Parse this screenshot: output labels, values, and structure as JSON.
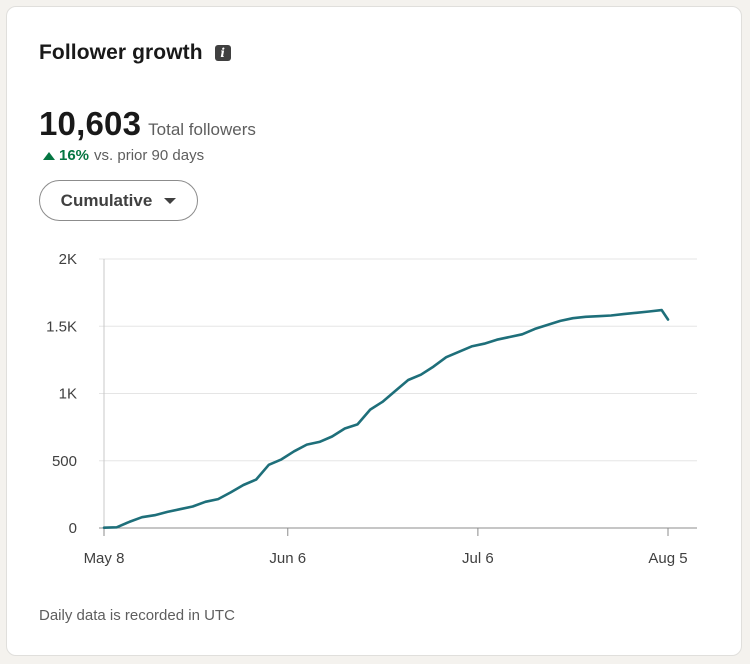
{
  "card": {
    "title": "Follower growth",
    "info_icon": "info-icon",
    "total_value": "10,603",
    "total_label": "Total followers",
    "change_pct": "16%",
    "change_label": "vs. prior 90 days",
    "dropdown_label": "Cumulative",
    "footnote": "Daily data is recorded in UTC"
  },
  "colors": {
    "line": "#1e6f7a",
    "positive": "#057642",
    "grid": "#e5e5e5"
  },
  "chart_data": {
    "type": "line",
    "title": "",
    "xlabel": "",
    "ylabel": "",
    "ylim": [
      0,
      2000
    ],
    "yticks": [
      0,
      500,
      1000,
      1500,
      2000
    ],
    "yticklabels": [
      "0",
      "500",
      "1K",
      "1.5K",
      "2K"
    ],
    "xticks": [
      0,
      29,
      59,
      89
    ],
    "xticklabels": [
      "May 8",
      "Jun 6",
      "Jul 6",
      "Aug 5"
    ],
    "xlim": [
      0,
      94
    ],
    "grid": true,
    "series": [
      {
        "x": [
          0,
          2,
          4,
          6,
          8,
          10,
          12,
          14,
          16,
          18,
          20,
          22,
          24,
          26,
          28,
          30,
          32,
          34,
          36,
          38,
          40,
          42,
          44,
          46,
          48,
          50,
          52,
          54,
          56,
          58,
          60,
          62,
          64,
          66,
          68,
          70,
          72,
          74,
          76,
          78,
          80,
          82,
          84,
          86,
          88,
          89
        ],
        "values": [
          2,
          5,
          45,
          80,
          95,
          120,
          140,
          160,
          195,
          215,
          265,
          320,
          360,
          470,
          510,
          570,
          620,
          640,
          680,
          740,
          770,
          880,
          940,
          1020,
          1100,
          1140,
          1200,
          1270,
          1310,
          1350,
          1370,
          1400,
          1420,
          1440,
          1480,
          1510,
          1540,
          1560,
          1570,
          1575,
          1580,
          1590,
          1600,
          1610,
          1620,
          1550
        ]
      }
    ]
  }
}
